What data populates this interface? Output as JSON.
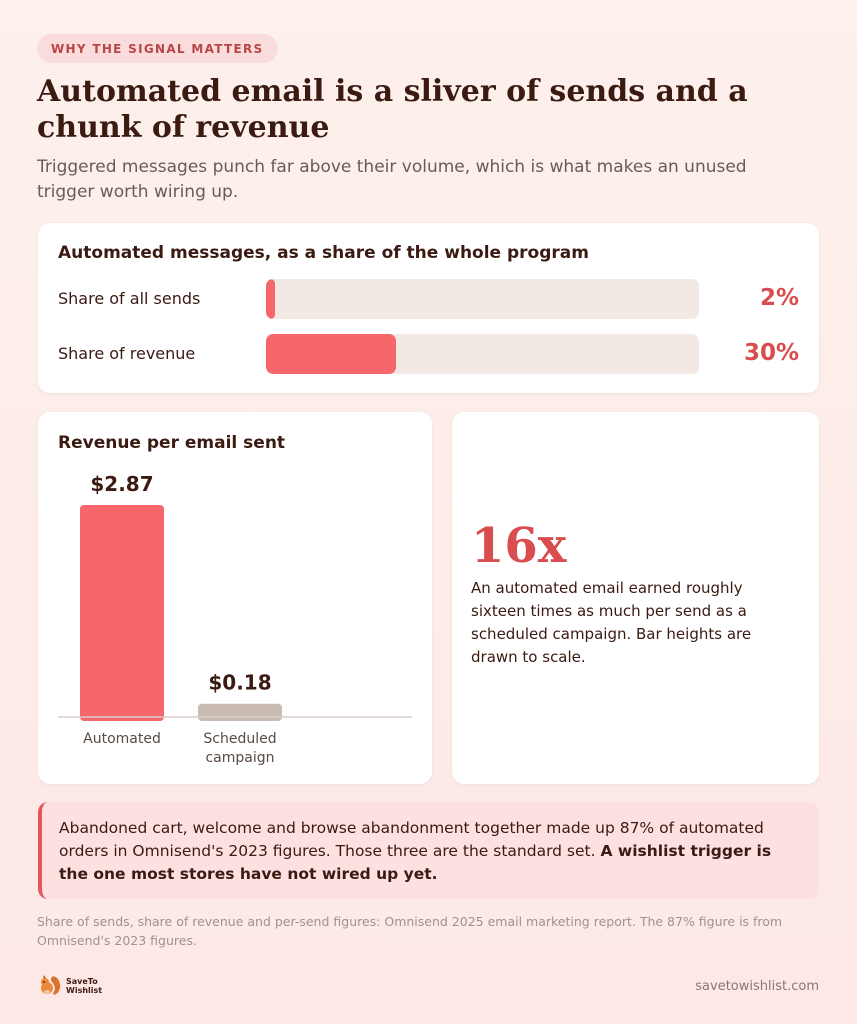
{
  "tag": "WHY THE SIGNAL MATTERS",
  "headline": "Automated email is a sliver of sends and a chunk of revenue",
  "subhead": "Triggered messages punch far above their volume, which is what makes an unused trigger worth wiring up.",
  "share_card": {
    "title": "Automated messages, as a share of the whole program"
  },
  "rpe_card": {
    "title": "Revenue per email sent"
  },
  "multiplier": {
    "value": "16x",
    "text": "An automated email earned roughly sixteen times as much per send as a scheduled campaign. Bar heights are drawn to scale."
  },
  "callout": {
    "text": "Abandoned cart, welcome and browse abandonment together made up 87% of automated orders in Omnisend's 2023 figures. Those three are the standard set.",
    "bold": "A wishlist trigger is the one most stores have not wired up yet."
  },
  "source": "Share of sends, share of revenue and per-send figures: Omnisend 2025 email marketing report. The 87% figure is from Omnisend's 2023 figures.",
  "logo": {
    "line1": "SaveTo",
    "line2": "Wishlist"
  },
  "site": "savetowishlist.com",
  "colors": {
    "accent": "#f5676b",
    "accent_text": "#d94c50",
    "muted_bar": "#c9bbb3",
    "track": "#f3e9e4"
  },
  "chart_data": [
    {
      "type": "bar",
      "orientation": "horizontal",
      "title": "Automated messages, as a share of the whole program",
      "categories": [
        "Share of all sends",
        "Share of revenue"
      ],
      "values": [
        2,
        30
      ],
      "value_labels": [
        "2%",
        "30%"
      ],
      "unit": "%",
      "xlim": [
        0,
        100
      ]
    },
    {
      "type": "bar",
      "orientation": "vertical",
      "title": "Revenue per email sent",
      "categories": [
        "Automated",
        "Scheduled campaign"
      ],
      "category_lines": [
        [
          "Automated"
        ],
        [
          "Scheduled",
          "campaign"
        ]
      ],
      "values": [
        2.87,
        0.18
      ],
      "value_labels": [
        "$2.87",
        "$0.18"
      ],
      "unit": "$",
      "ylim": [
        0,
        2.87
      ]
    }
  ]
}
